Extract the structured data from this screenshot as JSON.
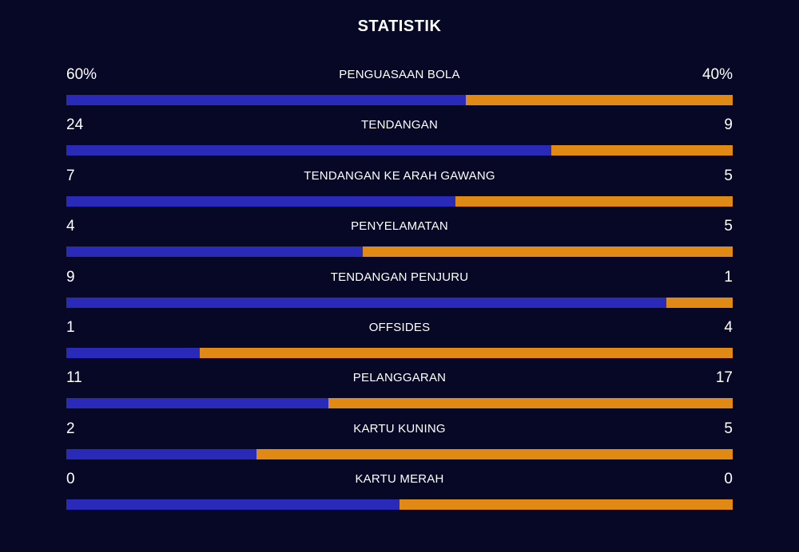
{
  "title": "STATISTIK",
  "colors": {
    "background": "#070826",
    "home_bar": "#2a2ab8",
    "away_bar": "#e08a15"
  },
  "stats": [
    {
      "label": "PENGUASAAN BOLA",
      "home": "60%",
      "away": "40%",
      "home_value": 60,
      "away_value": 40
    },
    {
      "label": "TENDANGAN",
      "home": "24",
      "away": "9",
      "home_value": 24,
      "away_value": 9
    },
    {
      "label": "TENDANGAN KE ARAH GAWANG",
      "home": "7",
      "away": "5",
      "home_value": 7,
      "away_value": 5
    },
    {
      "label": "PENYELAMATAN",
      "home": "4",
      "away": "5",
      "home_value": 4,
      "away_value": 5
    },
    {
      "label": "TENDANGAN PENJURU",
      "home": "9",
      "away": "1",
      "home_value": 9,
      "away_value": 1
    },
    {
      "label": "OFFSIDES",
      "home": "1",
      "away": "4",
      "home_value": 1,
      "away_value": 4
    },
    {
      "label": "PELANGGARAN",
      "home": "11",
      "away": "17",
      "home_value": 11,
      "away_value": 17
    },
    {
      "label": "KARTU KUNING",
      "home": "2",
      "away": "5",
      "home_value": 2,
      "away_value": 5
    },
    {
      "label": "KARTU MERAH",
      "home": "0",
      "away": "0",
      "home_value": 0,
      "away_value": 0
    }
  ]
}
